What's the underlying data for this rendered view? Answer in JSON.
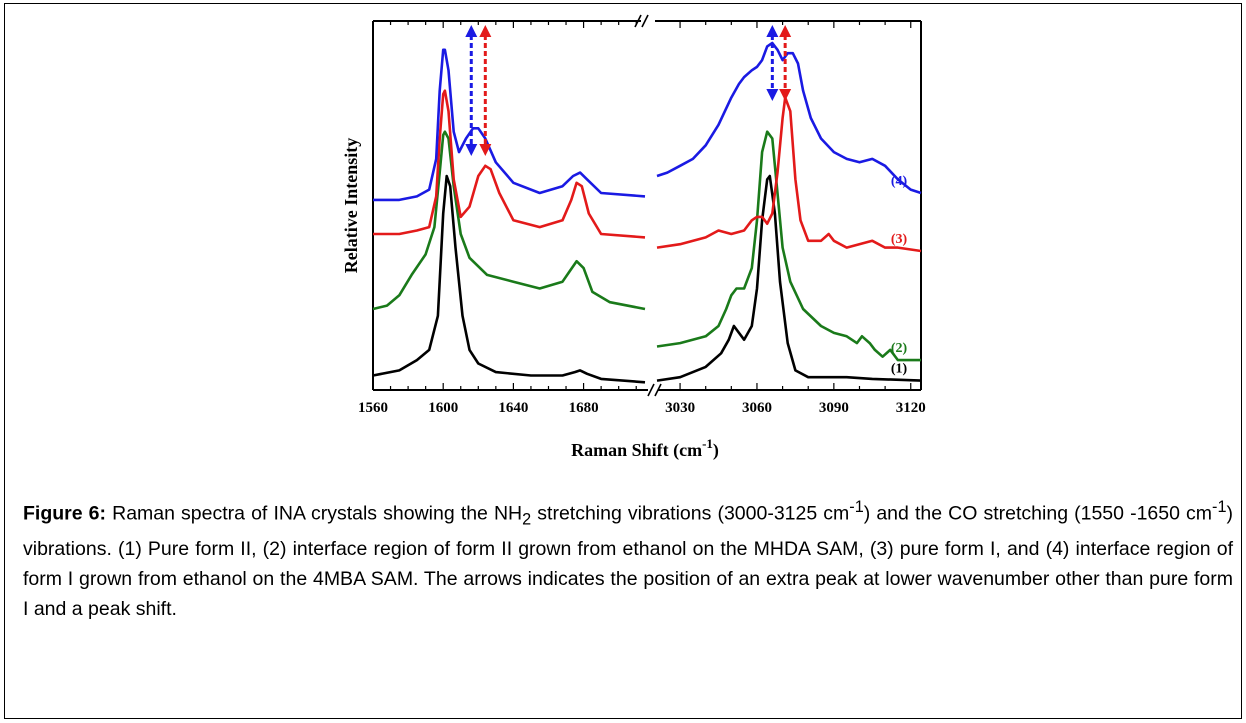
{
  "chart_data": {
    "type": "line",
    "ylabel": "Relative Intensity",
    "xlabel_main": "Raman Shift (cm",
    "xlabel_sup": "-1",
    "xlabel_tail": ")",
    "axis_break": true,
    "yticks": false,
    "left_panel": {
      "xlim": [
        1560,
        1715
      ],
      "ticks": [
        "1560",
        "1600",
        "1640",
        "1680"
      ],
      "tick_values": [
        1560,
        1600,
        1640,
        1680
      ]
    },
    "right_panel": {
      "xlim": [
        3021,
        3124
      ],
      "ticks": [
        "3030",
        "3060",
        "3090",
        "3120"
      ],
      "tick_values": [
        3030,
        3060,
        3090,
        3120
      ]
    },
    "ylim": [
      0,
      1
    ],
    "series": [
      {
        "label": "(1)",
        "color": "#000000",
        "left": [
          [
            1560,
            0.025
          ],
          [
            1575,
            0.04
          ],
          [
            1585,
            0.07
          ],
          [
            1592,
            0.1
          ],
          [
            1597,
            0.2
          ],
          [
            1600,
            0.5
          ],
          [
            1602,
            0.61
          ],
          [
            1604,
            0.58
          ],
          [
            1607,
            0.4
          ],
          [
            1611,
            0.2
          ],
          [
            1615,
            0.1
          ],
          [
            1620,
            0.06
          ],
          [
            1630,
            0.035
          ],
          [
            1650,
            0.025
          ],
          [
            1668,
            0.025
          ],
          [
            1675,
            0.035
          ],
          [
            1678,
            0.04
          ],
          [
            1682,
            0.03
          ],
          [
            1690,
            0.015
          ],
          [
            1715,
            0.005
          ]
        ],
        "right": [
          [
            3021,
            0.01
          ],
          [
            3030,
            0.02
          ],
          [
            3040,
            0.05
          ],
          [
            3046,
            0.09
          ],
          [
            3049,
            0.13
          ],
          [
            3051,
            0.17
          ],
          [
            3053,
            0.15
          ],
          [
            3055,
            0.13
          ],
          [
            3058,
            0.17
          ],
          [
            3060,
            0.28
          ],
          [
            3062,
            0.48
          ],
          [
            3064,
            0.6
          ],
          [
            3065,
            0.61
          ],
          [
            3067,
            0.5
          ],
          [
            3069,
            0.3
          ],
          [
            3072,
            0.12
          ],
          [
            3075,
            0.04
          ],
          [
            3080,
            0.02
          ],
          [
            3095,
            0.02
          ],
          [
            3105,
            0.015
          ],
          [
            3124,
            0.01
          ]
        ]
      },
      {
        "label": "(2)",
        "color": "#1a7a1a",
        "left": [
          [
            1560,
            0.22
          ],
          [
            1568,
            0.23
          ],
          [
            1575,
            0.26
          ],
          [
            1582,
            0.32
          ],
          [
            1590,
            0.38
          ],
          [
            1595,
            0.46
          ],
          [
            1598,
            0.62
          ],
          [
            1600,
            0.73
          ],
          [
            1601,
            0.74
          ],
          [
            1603,
            0.72
          ],
          [
            1606,
            0.58
          ],
          [
            1610,
            0.44
          ],
          [
            1615,
            0.37
          ],
          [
            1625,
            0.32
          ],
          [
            1640,
            0.3
          ],
          [
            1655,
            0.28
          ],
          [
            1668,
            0.3
          ],
          [
            1672,
            0.33
          ],
          [
            1676,
            0.36
          ],
          [
            1680,
            0.34
          ],
          [
            1685,
            0.27
          ],
          [
            1695,
            0.24
          ],
          [
            1715,
            0.22
          ]
        ],
        "right": [
          [
            3021,
            0.11
          ],
          [
            3030,
            0.12
          ],
          [
            3040,
            0.14
          ],
          [
            3045,
            0.17
          ],
          [
            3048,
            0.22
          ],
          [
            3050,
            0.26
          ],
          [
            3052,
            0.28
          ],
          [
            3055,
            0.28
          ],
          [
            3058,
            0.34
          ],
          [
            3060,
            0.48
          ],
          [
            3062,
            0.68
          ],
          [
            3064,
            0.74
          ],
          [
            3066,
            0.72
          ],
          [
            3068,
            0.56
          ],
          [
            3070,
            0.4
          ],
          [
            3073,
            0.3
          ],
          [
            3078,
            0.22
          ],
          [
            3085,
            0.17
          ],
          [
            3090,
            0.15
          ],
          [
            3095,
            0.14
          ],
          [
            3099,
            0.12
          ],
          [
            3101,
            0.14
          ],
          [
            3104,
            0.12
          ],
          [
            3106,
            0.1
          ],
          [
            3109,
            0.08
          ],
          [
            3112,
            0.1
          ],
          [
            3115,
            0.07
          ],
          [
            3118,
            0.07
          ],
          [
            3124,
            0.07
          ]
        ]
      },
      {
        "label": "(3)",
        "color": "#e31a1a",
        "left": [
          [
            1560,
            0.44
          ],
          [
            1575,
            0.44
          ],
          [
            1585,
            0.45
          ],
          [
            1592,
            0.46
          ],
          [
            1596,
            0.55
          ],
          [
            1598,
            0.72
          ],
          [
            1600,
            0.85
          ],
          [
            1601,
            0.86
          ],
          [
            1603,
            0.8
          ],
          [
            1606,
            0.6
          ],
          [
            1610,
            0.49
          ],
          [
            1615,
            0.52
          ],
          [
            1620,
            0.61
          ],
          [
            1624,
            0.64
          ],
          [
            1627,
            0.63
          ],
          [
            1632,
            0.56
          ],
          [
            1640,
            0.48
          ],
          [
            1655,
            0.46
          ],
          [
            1668,
            0.48
          ],
          [
            1673,
            0.54
          ],
          [
            1676,
            0.59
          ],
          [
            1679,
            0.58
          ],
          [
            1683,
            0.5
          ],
          [
            1690,
            0.44
          ],
          [
            1715,
            0.43
          ]
        ],
        "right": [
          [
            3021,
            0.4
          ],
          [
            3030,
            0.41
          ],
          [
            3040,
            0.43
          ],
          [
            3045,
            0.45
          ],
          [
            3050,
            0.44
          ],
          [
            3055,
            0.45
          ],
          [
            3058,
            0.48
          ],
          [
            3060,
            0.49
          ],
          [
            3062,
            0.49
          ],
          [
            3064,
            0.47
          ],
          [
            3066,
            0.5
          ],
          [
            3068,
            0.62
          ],
          [
            3070,
            0.78
          ],
          [
            3071,
            0.84
          ],
          [
            3073,
            0.8
          ],
          [
            3075,
            0.6
          ],
          [
            3077,
            0.48
          ],
          [
            3080,
            0.42
          ],
          [
            3085,
            0.42
          ],
          [
            3088,
            0.44
          ],
          [
            3090,
            0.42
          ],
          [
            3095,
            0.4
          ],
          [
            3105,
            0.42
          ],
          [
            3110,
            0.4
          ],
          [
            3115,
            0.4
          ],
          [
            3124,
            0.39
          ]
        ]
      },
      {
        "label": "(4)",
        "color": "#1a1ae3",
        "left": [
          [
            1560,
            0.54
          ],
          [
            1575,
            0.54
          ],
          [
            1585,
            0.55
          ],
          [
            1592,
            0.57
          ],
          [
            1596,
            0.66
          ],
          [
            1598,
            0.86
          ],
          [
            1600,
            0.98
          ],
          [
            1601,
            0.98
          ],
          [
            1603,
            0.92
          ],
          [
            1606,
            0.74
          ],
          [
            1609,
            0.68
          ],
          [
            1613,
            0.72
          ],
          [
            1617,
            0.75
          ],
          [
            1620,
            0.75
          ],
          [
            1624,
            0.72
          ],
          [
            1630,
            0.65
          ],
          [
            1640,
            0.59
          ],
          [
            1655,
            0.56
          ],
          [
            1668,
            0.58
          ],
          [
            1674,
            0.61
          ],
          [
            1678,
            0.62
          ],
          [
            1682,
            0.6
          ],
          [
            1690,
            0.56
          ],
          [
            1715,
            0.55
          ]
        ],
        "right": [
          [
            3021,
            0.61
          ],
          [
            3025,
            0.62
          ],
          [
            3030,
            0.64
          ],
          [
            3035,
            0.66
          ],
          [
            3040,
            0.7
          ],
          [
            3045,
            0.76
          ],
          [
            3050,
            0.84
          ],
          [
            3053,
            0.88
          ],
          [
            3055,
            0.9
          ],
          [
            3058,
            0.92
          ],
          [
            3060,
            0.93
          ],
          [
            3062,
            0.95
          ],
          [
            3064,
            0.99
          ],
          [
            3066,
            1.0
          ],
          [
            3068,
            0.98
          ],
          [
            3070,
            0.95
          ],
          [
            3072,
            0.97
          ],
          [
            3074,
            0.97
          ],
          [
            3076,
            0.94
          ],
          [
            3078,
            0.86
          ],
          [
            3081,
            0.78
          ],
          [
            3085,
            0.72
          ],
          [
            3090,
            0.68
          ],
          [
            3095,
            0.66
          ],
          [
            3100,
            0.65
          ],
          [
            3105,
            0.66
          ],
          [
            3110,
            0.64
          ],
          [
            3115,
            0.6
          ],
          [
            3120,
            0.57
          ],
          [
            3124,
            0.56
          ]
        ]
      }
    ],
    "arrows": [
      {
        "panel": "left",
        "x": 1616,
        "color": "#1a1ae3"
      },
      {
        "panel": "left",
        "x": 1624,
        "color": "#e31a1a"
      },
      {
        "panel": "right",
        "x": 3066,
        "color": "#1a1ae3"
      },
      {
        "panel": "right",
        "x": 3071,
        "color": "#e31a1a"
      }
    ]
  },
  "caption": {
    "label": "Figure 6:",
    "t1": " Raman spectra of INA crystals showing the NH",
    "sub2": "2",
    "t2": " stretching vibrations (3000-3125 cm",
    "sup1": "-1",
    "t3": ") and the CO stretching (1550 -1650 cm",
    "sup2": "-1",
    "t4": ") vibrations. (1) Pure form II, (2) interface region of form II grown from ethanol on the MHDA SAM, (3) pure form I, and (4) interface region of form I grown from ethanol on the 4MBA SAM. The arrows indicates the position of an extra peak at lower wavenumber other than pure form I and a peak shift."
  }
}
